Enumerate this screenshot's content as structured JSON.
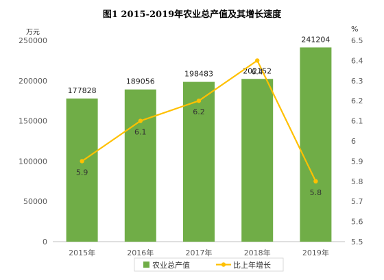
{
  "title": "图1 2015-2019年农业总产值及其增长速度",
  "chart_data": {
    "type": "bar",
    "categories": [
      "2015年",
      "2016年",
      "2017年",
      "2018年",
      "2019年"
    ],
    "series": [
      {
        "name": "农业总产值",
        "type": "bar",
        "axis": "left",
        "values": [
          177828,
          189056,
          198483,
          202152,
          241204
        ],
        "color": "#70ad47"
      },
      {
        "name": "比上年增长",
        "type": "line",
        "axis": "right",
        "values": [
          5.9,
          6.1,
          6.2,
          6.4,
          5.8
        ],
        "color": "#ffc000"
      }
    ],
    "y_left": {
      "unit": "万元",
      "min": 0,
      "max": 250000,
      "step": 50000,
      "ticks": [
        "0",
        "50000",
        "100000",
        "150000",
        "200000",
        "250000"
      ]
    },
    "y_right": {
      "unit": "%",
      "min": 5.5,
      "max": 6.5,
      "step": 0.1,
      "ticks": [
        "5.5",
        "5.6",
        "5.7",
        "5.8",
        "5.9",
        "6",
        "6.1",
        "6.2",
        "6.3",
        "6.4",
        "6.5"
      ]
    },
    "legend_position": "bottom",
    "grid": false
  }
}
